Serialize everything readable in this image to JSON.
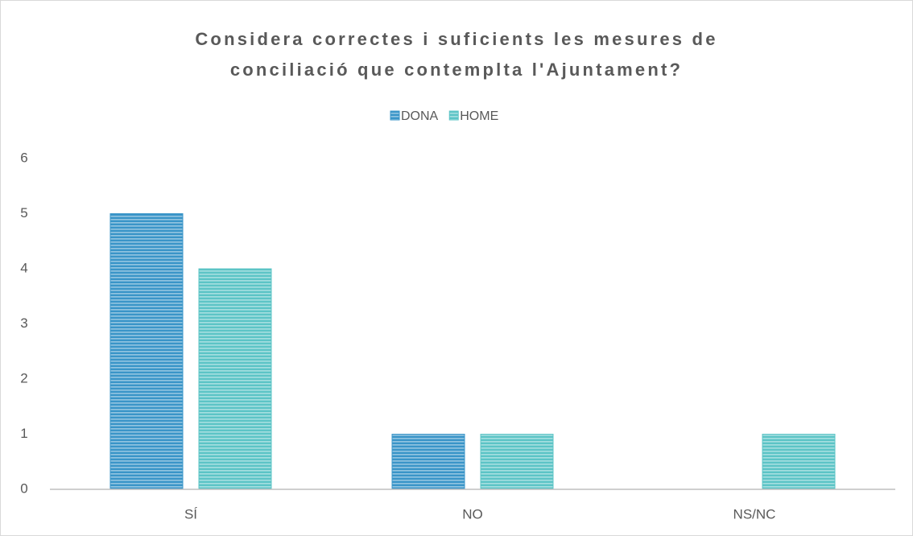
{
  "chart_data": {
    "type": "bar",
    "title": [
      "Considera correctes i suficients les mesures de",
      "conciliació que contemplta l'Ajuntament?"
    ],
    "categories": [
      "SÍ",
      "NO",
      "NS/NC"
    ],
    "series": [
      {
        "name": "DONA",
        "color": "#3a95c8",
        "values": [
          5,
          1,
          0
        ]
      },
      {
        "name": "HOME",
        "color": "#5cc4c6",
        "values": [
          4,
          1,
          1
        ]
      }
    ],
    "ylim": [
      0,
      6
    ],
    "yticks": [
      0,
      1,
      2,
      3,
      4,
      5,
      6
    ],
    "grid": false,
    "legend": "top"
  }
}
